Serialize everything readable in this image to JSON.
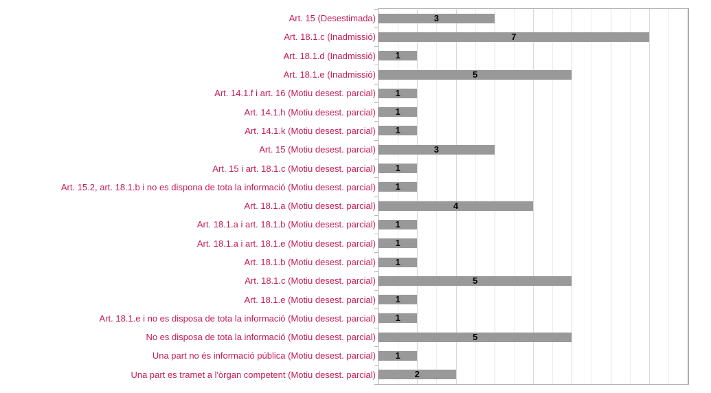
{
  "chart_data": {
    "type": "bar",
    "orientation": "horizontal",
    "title": "",
    "xlabel": "",
    "ylabel": "",
    "legend": "none",
    "grid": "vertical",
    "xlim": [
      0,
      8
    ],
    "gridline_step": 0.5,
    "categories": [
      "Art. 15 (Desestimada)",
      "Art. 18.1.c (Inadmissió)",
      "Art. 18.1.d (Inadmissió)",
      "Art. 18.1.e (Inadmissió)",
      "Art. 14.1.f i art. 16 (Motiu desest. parcial)",
      "Art. 14.1.h (Motiu desest. parcial)",
      "Art. 14.1.k (Motiu desest. parcial)",
      "Art. 15 (Motiu desest. parcial)",
      "Art. 15 i art. 18.1.c (Motiu desest. parcial)",
      "Art. 15.2, art. 18.1.b i no es dispona de tota la informació (Motiu desest. parcial)",
      "Art. 18.1.a (Motiu desest. parcial)",
      "Art. 18.1.a i art. 18.1.b (Motiu desest. parcial)",
      "Art. 18.1.a i art. 18.1.e (Motiu desest. parcial)",
      "Art. 18.1.b (Motiu desest. parcial)",
      "Art. 18.1.c (Motiu desest. parcial)",
      "Art. 18.1.e (Motiu desest. parcial)",
      "Art. 18.1.e i no es disposa de tota la informació (Motiu desest. parcial)",
      "No es disposa de tota la informació (Motiu desest. parcial)",
      "Una part no és informació pública (Motiu desest. parcial)",
      "Una part es tramet a l'òrgan competent (Motiu desest. parcial)"
    ],
    "values": [
      3,
      7,
      1,
      5,
      1,
      1,
      1,
      3,
      1,
      1,
      4,
      1,
      1,
      1,
      5,
      1,
      1,
      5,
      1,
      2
    ],
    "colors": {
      "bar": "#999999",
      "category_label": "#c41a54",
      "value_label": "#000000",
      "grid_major": "#d9d9d9",
      "grid_minor": "#ececec",
      "axis_border": "#b3b3b3",
      "background": "#ffffff"
    }
  }
}
